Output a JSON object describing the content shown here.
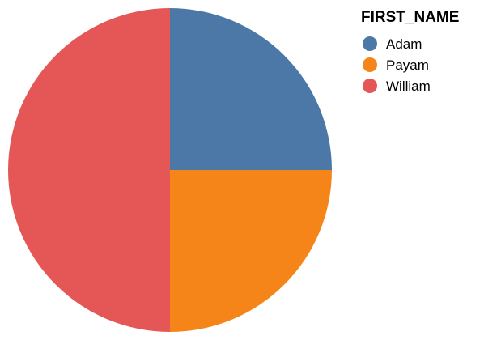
{
  "chart_data": {
    "type": "pie",
    "legend_title": "FIRST_NAME",
    "legend_position": "top-right",
    "categories": [
      "Adam",
      "Payam",
      "William"
    ],
    "values": [
      1,
      1,
      2
    ],
    "colors": [
      "#4c78a8",
      "#f58518",
      "#e45756"
    ]
  }
}
